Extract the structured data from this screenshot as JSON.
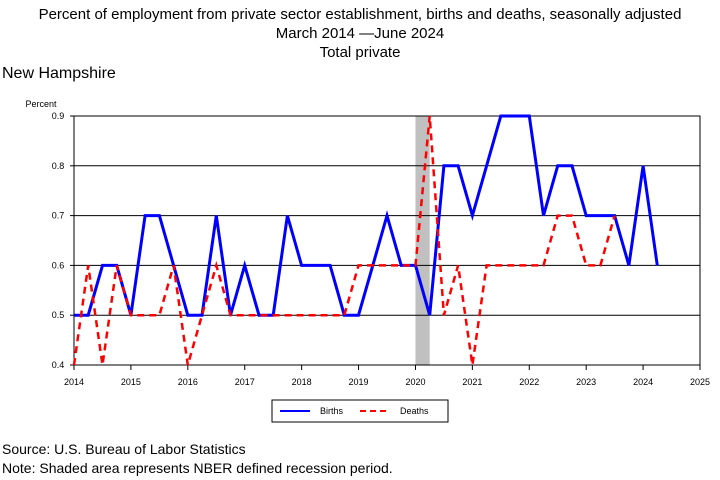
{
  "title": {
    "line1": "Percent of employment from private sector establishment, births and deaths, seasonally adjusted",
    "line2": "March 2014 —June 2024",
    "line3": "Total private"
  },
  "region": "New Hampshire",
  "footer": {
    "source": "Source: U.S. Bureau of Labor Statistics",
    "note": "Note: Shaded area represents NBER defined recession period."
  },
  "chart_data": {
    "type": "line",
    "ylabel": "Percent",
    "xlim": [
      2014,
      2025
    ],
    "ylim": [
      0.4,
      0.9
    ],
    "x_ticks": [
      "2014",
      "2015",
      "2016",
      "2017",
      "2018",
      "2019",
      "2020",
      "2021",
      "2022",
      "2023",
      "2024",
      "2025"
    ],
    "y_ticks": [
      "0.4",
      "0.5",
      "0.6",
      "0.7",
      "0.8",
      "0.9"
    ],
    "grid": "horizontal",
    "legend_position": "bottom",
    "recession_shading": {
      "start": 2020.0,
      "end": 2020.25
    },
    "x": [
      2014.0,
      2014.25,
      2014.5,
      2014.75,
      2015.0,
      2015.25,
      2015.5,
      2015.75,
      2016.0,
      2016.25,
      2016.5,
      2016.75,
      2017.0,
      2017.25,
      2017.5,
      2017.75,
      2018.0,
      2018.25,
      2018.5,
      2018.75,
      2019.0,
      2019.25,
      2019.5,
      2019.75,
      2020.0,
      2020.25,
      2020.5,
      2020.75,
      2021.0,
      2021.25,
      2021.5,
      2021.75,
      2022.0,
      2022.25,
      2022.5,
      2022.75,
      2023.0,
      2023.25,
      2023.5,
      2023.75,
      2024.0,
      2024.25
    ],
    "series": [
      {
        "name": "Births",
        "color": "#0000ff",
        "dash": "solid",
        "values": [
          0.5,
          0.5,
          0.6,
          0.6,
          0.5,
          0.7,
          0.7,
          0.6,
          0.5,
          0.5,
          0.7,
          0.5,
          0.6,
          0.5,
          0.5,
          0.7,
          0.6,
          0.6,
          0.6,
          0.5,
          0.5,
          0.6,
          0.7,
          0.6,
          0.6,
          0.5,
          0.8,
          0.8,
          0.7,
          0.8,
          0.9,
          0.9,
          0.9,
          0.7,
          0.8,
          0.8,
          0.7,
          0.7,
          0.7,
          0.6,
          0.8,
          0.6
        ]
      },
      {
        "name": "Deaths",
        "color": "#ff0000",
        "dash": "dashed",
        "values": [
          0.4,
          0.6,
          0.4,
          0.6,
          0.5,
          0.5,
          0.5,
          0.6,
          0.4,
          0.5,
          0.6,
          0.5,
          0.5,
          0.5,
          0.5,
          0.5,
          0.5,
          0.5,
          0.5,
          0.5,
          0.6,
          0.6,
          0.6,
          0.6,
          0.6,
          0.9,
          0.5,
          0.6,
          0.4,
          0.6,
          0.6,
          0.6,
          0.6,
          0.6,
          0.7,
          0.7,
          0.6,
          0.6,
          0.7,
          null,
          null,
          null
        ]
      }
    ]
  }
}
